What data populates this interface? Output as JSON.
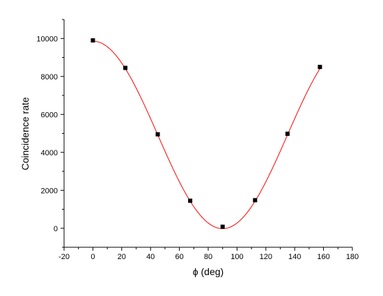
{
  "chart_data": {
    "type": "scatter",
    "title": "",
    "xlabel": "ϕ (deg)",
    "ylabel": "Coincidence rate",
    "xlim": [
      -20,
      180
    ],
    "ylim": [
      -1000,
      11000
    ],
    "x_ticks": [
      -20,
      0,
      20,
      40,
      60,
      80,
      100,
      120,
      140,
      160,
      180
    ],
    "y_ticks": [
      0,
      2000,
      4000,
      6000,
      8000,
      10000
    ],
    "grid": false,
    "legend": "none",
    "series": [
      {
        "kind": "points",
        "marker": "square",
        "color": "#000000",
        "x": [
          0,
          22.5,
          45,
          67.5,
          90,
          112.5,
          135,
          157.5
        ],
        "y": [
          9900,
          8450,
          4950,
          1450,
          80,
          1480,
          4980,
          8500
        ]
      },
      {
        "kind": "fit",
        "color": "#ff0000",
        "model": "offset + amplitude * cos^2(x)",
        "offset": -20,
        "amplitude": 9880,
        "x_range": [
          0,
          158
        ]
      }
    ]
  }
}
